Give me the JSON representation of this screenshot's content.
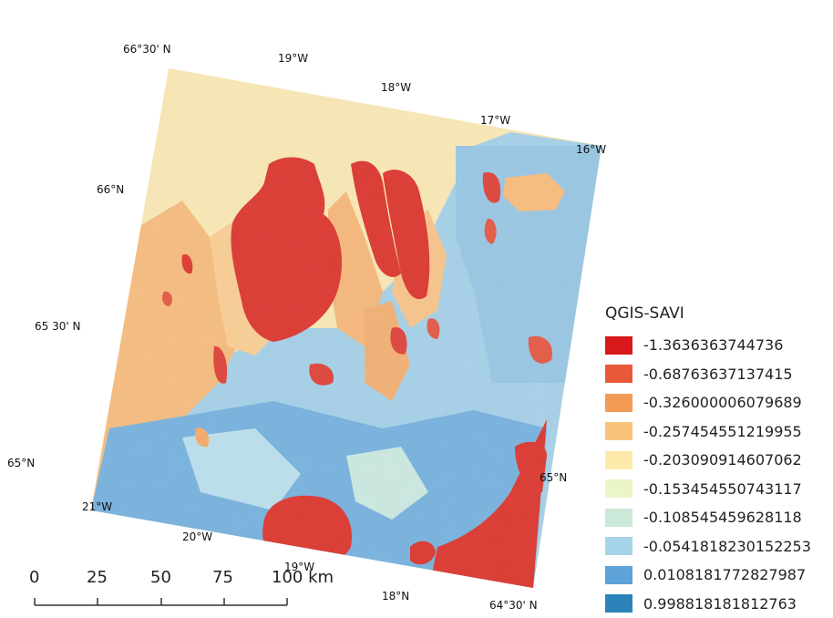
{
  "map": {
    "coordinate_labels": {
      "lat_66_30": "66°30' N",
      "lat_66": "66°N",
      "lat_65_30": "65 30' N",
      "lat_65_left": "65°N",
      "lat_65_right": "65°N",
      "lat_64_30": "64°30' N",
      "lon_19_top": "19°W",
      "lon_18_top": "18°W",
      "lon_17_top": "17°W",
      "lon_16_top": "16°W",
      "lon_21_bottom": "21°W",
      "lon_20_bottom": "20°W",
      "lon_19_bottom": "19°W",
      "lon_18_bottom": "18°N"
    },
    "scale_bar": {
      "ticks": [
        "0",
        "25",
        "50",
        "75",
        "100 km"
      ]
    }
  },
  "legend": {
    "title": "QGIS-SAVI",
    "items": [
      {
        "label": "-1.3636363744736",
        "color": "#d7191c"
      },
      {
        "label": "-0.68763637137415",
        "color": "#e8593a"
      },
      {
        "label": "-0.326000006079689",
        "color": "#f39a55"
      },
      {
        "label": "-0.257454551219955",
        "color": "#f9c37c"
      },
      {
        "label": "-0.203090914607062",
        "color": "#fde9a9"
      },
      {
        "label": "-0.153454550743117",
        "color": "#eaf6c6"
      },
      {
        "label": "-0.108545459628118",
        "color": "#cbe9d8"
      },
      {
        "label": "-0.0541818230152253",
        "color": "#a5d3e8"
      },
      {
        "label": "0.0108181772827987",
        "color": "#5da2d8"
      },
      {
        "label": "0.998818181812763",
        "color": "#2b83ba"
      }
    ]
  }
}
